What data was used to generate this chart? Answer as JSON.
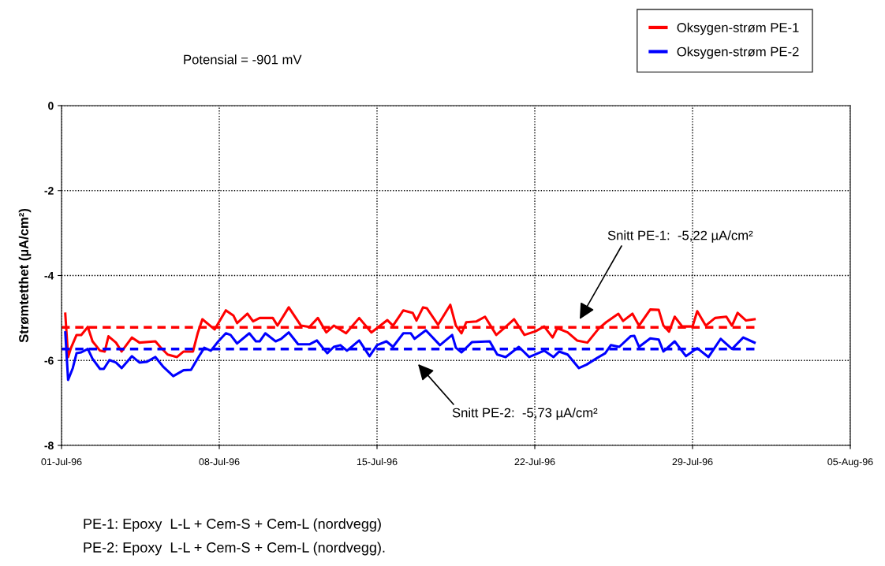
{
  "chart_data": {
    "type": "line",
    "ylabel": "Strømtetthet (µA/cm²)",
    "xlim": [
      "1996-07-01",
      "1996-08-05"
    ],
    "xticks": [
      {
        "value": "1996-07-01",
        "label": "01-Jul-96"
      },
      {
        "value": "1996-07-08",
        "label": "08-Jul-96"
      },
      {
        "value": "1996-07-15",
        "label": "15-Jul-96"
      },
      {
        "value": "1996-07-22",
        "label": "22-Jul-96"
      },
      {
        "value": "1996-07-29",
        "label": "29-Jul-96"
      },
      {
        "value": "1996-08-05",
        "label": "05-Aug-96"
      }
    ],
    "ylim": [
      -8,
      0
    ],
    "yticks": [
      0,
      -2,
      -4,
      -6,
      -8
    ],
    "grid": true,
    "legend": "top right",
    "line_style": "solid",
    "marker": "none",
    "series": [
      {
        "name": "Oksygen-strøm PE-1",
        "color": "#ff0000",
        "x": [
          "1996-07-01T04:00",
          "1996-07-01T07:00",
          "1996-07-01T10:00",
          "1996-07-01T16:00",
          "1996-07-01T21:00",
          "1996-07-02T04:00",
          "1996-07-02T09:00",
          "1996-07-02T17:00",
          "1996-07-02T22:00",
          "1996-07-03T02:00",
          "1996-07-03T10:00",
          "1996-07-03T16:00",
          "1996-07-04T03:00",
          "1996-07-04T11:00",
          "1996-07-05T04:00",
          "1996-07-05T09:00",
          "1996-07-05T17:00",
          "1996-07-06T03:00",
          "1996-07-06T10:00",
          "1996-07-06T20:00",
          "1996-07-07T01:00",
          "1996-07-07T06:00",
          "1996-07-07T19:00",
          "1996-07-08T07:00",
          "1996-07-08T15:00",
          "1996-07-08T19:00",
          "1996-07-09T06:00",
          "1996-07-09T12:00",
          "1996-07-09T19:00",
          "1996-07-10T09:00",
          "1996-07-10T14:00",
          "1996-07-11T02:00",
          "1996-07-11T15:00",
          "1996-07-12T00:00",
          "1996-07-12T09:00",
          "1996-07-12T18:00",
          "1996-07-13T02:00",
          "1996-07-13T15:00",
          "1996-07-14T05:00",
          "1996-07-14T18:00",
          "1996-07-15T11:00",
          "1996-07-15T17:00",
          "1996-07-16T04:00",
          "1996-07-16T14:00",
          "1996-07-16T18:00",
          "1996-07-17T01:00",
          "1996-07-17T05:00",
          "1996-07-17T17:00",
          "1996-07-18T06:00",
          "1996-07-18T12:00",
          "1996-07-18T18:00",
          "1996-07-18T23:00",
          "1996-07-19T10:00",
          "1996-07-19T19:00",
          "1996-07-20T07:00",
          "1996-07-20T17:00",
          "1996-07-21T02:00",
          "1996-07-21T13:00",
          "1996-07-22T01:00",
          "1996-07-22T10:00",
          "1996-07-22T19:00",
          "1996-07-23T00:00",
          "1996-07-23T11:00",
          "1996-07-23T21:00",
          "1996-07-24T08:00",
          "1996-07-24T20:00",
          "1996-07-25T04:00",
          "1996-07-25T17:00",
          "1996-07-25T22:00",
          "1996-07-26T08:00",
          "1996-07-26T15:00",
          "1996-07-27T03:00",
          "1996-07-27T12:00",
          "1996-07-27T17:00",
          "1996-07-27T23:00",
          "1996-07-28T05:00",
          "1996-07-28T13:00",
          "1996-07-29T00:00",
          "1996-07-29T05:00",
          "1996-07-29T14:00",
          "1996-07-30T00:00",
          "1996-07-30T12:00",
          "1996-07-30T18:00",
          "1996-07-31T00:00",
          "1996-07-31T09:00",
          "1996-07-31T18:00"
        ],
        "values": [
          -4.9,
          -5.92,
          -5.71,
          -5.4,
          -5.4,
          -5.21,
          -5.55,
          -5.77,
          -5.79,
          -5.43,
          -5.58,
          -5.79,
          -5.46,
          -5.58,
          -5.55,
          -5.68,
          -5.86,
          -5.92,
          -5.79,
          -5.79,
          -5.36,
          -5.03,
          -5.27,
          -4.82,
          -4.94,
          -5.12,
          -4.9,
          -5.08,
          -5.0,
          -5.0,
          -5.18,
          -4.75,
          -5.18,
          -5.21,
          -5.0,
          -5.34,
          -5.18,
          -5.36,
          -5.0,
          -5.34,
          -5.05,
          -5.18,
          -4.82,
          -4.88,
          -5.06,
          -4.75,
          -4.77,
          -5.16,
          -4.69,
          -5.18,
          -5.36,
          -5.1,
          -5.08,
          -4.97,
          -5.4,
          -5.21,
          -5.03,
          -5.4,
          -5.31,
          -5.2,
          -5.46,
          -5.24,
          -5.34,
          -5.53,
          -5.58,
          -5.25,
          -5.1,
          -4.9,
          -5.07,
          -4.9,
          -5.18,
          -4.8,
          -4.81,
          -5.18,
          -5.32,
          -4.97,
          -5.2,
          -5.2,
          -4.84,
          -5.18,
          -5.0,
          -4.97,
          -5.18,
          -4.88,
          -5.06,
          -5.03
        ]
      },
      {
        "name": "Oksygen-strøm PE-2",
        "color": "#0000ff",
        "x": [
          "1996-07-01T04:00",
          "1996-07-01T07:00",
          "1996-07-01T12:00",
          "1996-07-01T16:00",
          "1996-07-01T21:00",
          "1996-07-02T04:00",
          "1996-07-02T09:00",
          "1996-07-02T17:00",
          "1996-07-02T21:00",
          "1996-07-03T03:00",
          "1996-07-03T10:00",
          "1996-07-03T16:00",
          "1996-07-04T03:00",
          "1996-07-04T11:00",
          "1996-07-04T19:00",
          "1996-07-05T04:00",
          "1996-07-05T12:00",
          "1996-07-05T23:00",
          "1996-07-06T10:00",
          "1996-07-06T18:00",
          "1996-07-07T00:00",
          "1996-07-07T08:00",
          "1996-07-07T15:00",
          "1996-07-07T23:00",
          "1996-07-08T07:00",
          "1996-07-08T12:00",
          "1996-07-08T19:00",
          "1996-07-09T08:00",
          "1996-07-09T15:00",
          "1996-07-09T19:00",
          "1996-07-10T01:00",
          "1996-07-10T12:00",
          "1996-07-10T18:00",
          "1996-07-11T02:00",
          "1996-07-11T12:00",
          "1996-07-12T00:00",
          "1996-07-12T08:00",
          "1996-07-12T19:00",
          "1996-07-13T02:00",
          "1996-07-13T09:00",
          "1996-07-13T16:00",
          "1996-07-14T05:00",
          "1996-07-14T16:00",
          "1996-07-15T00:00",
          "1996-07-15T10:00",
          "1996-07-15T17:00",
          "1996-07-16T04:00",
          "1996-07-16T12:00",
          "1996-07-16T16:00",
          "1996-07-17T04:00",
          "1996-07-17T19:00",
          "1996-07-18T08:00",
          "1996-07-18T12:00",
          "1996-07-18T18:00",
          "1996-07-19T05:00",
          "1996-07-20T00:00",
          "1996-07-20T08:00",
          "1996-07-20T17:00",
          "1996-07-21T07:00",
          "1996-07-21T18:00",
          "1996-07-22T10:00",
          "1996-07-22T20:00",
          "1996-07-23T02:00",
          "1996-07-23T11:00",
          "1996-07-23T23:00",
          "1996-07-24T07:00",
          "1996-07-24T17:00",
          "1996-07-25T03:00",
          "1996-07-25T09:00",
          "1996-07-25T18:00",
          "1996-07-26T06:00",
          "1996-07-26T10:00",
          "1996-07-26T15:00",
          "1996-07-27T03:00",
          "1996-07-27T12:00",
          "1996-07-27T17:00",
          "1996-07-28T05:00",
          "1996-07-28T17:00",
          "1996-07-29T05:00",
          "1996-07-29T17:00",
          "1996-07-30T06:00",
          "1996-07-30T18:00",
          "1996-07-31T06:00",
          "1996-07-31T18:00"
        ],
        "values": [
          -5.34,
          -6.46,
          -6.18,
          -5.83,
          -5.81,
          -5.73,
          -5.96,
          -6.2,
          -6.2,
          -5.99,
          -6.05,
          -6.18,
          -5.9,
          -6.05,
          -6.03,
          -5.92,
          -6.14,
          -6.37,
          -6.23,
          -6.22,
          -5.99,
          -5.7,
          -5.77,
          -5.55,
          -5.36,
          -5.4,
          -5.6,
          -5.36,
          -5.55,
          -5.55,
          -5.36,
          -5.55,
          -5.49,
          -5.34,
          -5.62,
          -5.62,
          -5.53,
          -5.83,
          -5.68,
          -5.64,
          -5.77,
          -5.53,
          -5.9,
          -5.64,
          -5.55,
          -5.68,
          -5.36,
          -5.36,
          -5.49,
          -5.29,
          -5.64,
          -5.4,
          -5.7,
          -5.81,
          -5.57,
          -5.55,
          -5.86,
          -5.92,
          -5.68,
          -5.92,
          -5.77,
          -5.92,
          -5.79,
          -5.86,
          -6.18,
          -6.1,
          -5.96,
          -5.83,
          -5.64,
          -5.68,
          -5.43,
          -5.42,
          -5.68,
          -5.48,
          -5.51,
          -5.79,
          -5.55,
          -5.9,
          -5.71,
          -5.92,
          -5.49,
          -5.73,
          -5.46,
          -5.58
        ]
      }
    ],
    "ref_lines": [
      {
        "axis": "y",
        "value": -5.22,
        "color": "#ff0000",
        "line_style": "dashed"
      },
      {
        "axis": "y",
        "value": -5.73,
        "color": "#0000ff",
        "line_style": "dashed"
      }
    ],
    "annotations": [
      "Potensial = -901 mV",
      "Snitt PE-1:  -5,22 µA/cm²",
      "Snitt PE-2:  -5,73 µA/cm²",
      "PE-1: Epoxy  L-L + Cem-S + Cem-L (nordvegg)",
      "PE-2: Epoxy  L-L + Cem-S + Cem-L (nordvegg)."
    ]
  }
}
